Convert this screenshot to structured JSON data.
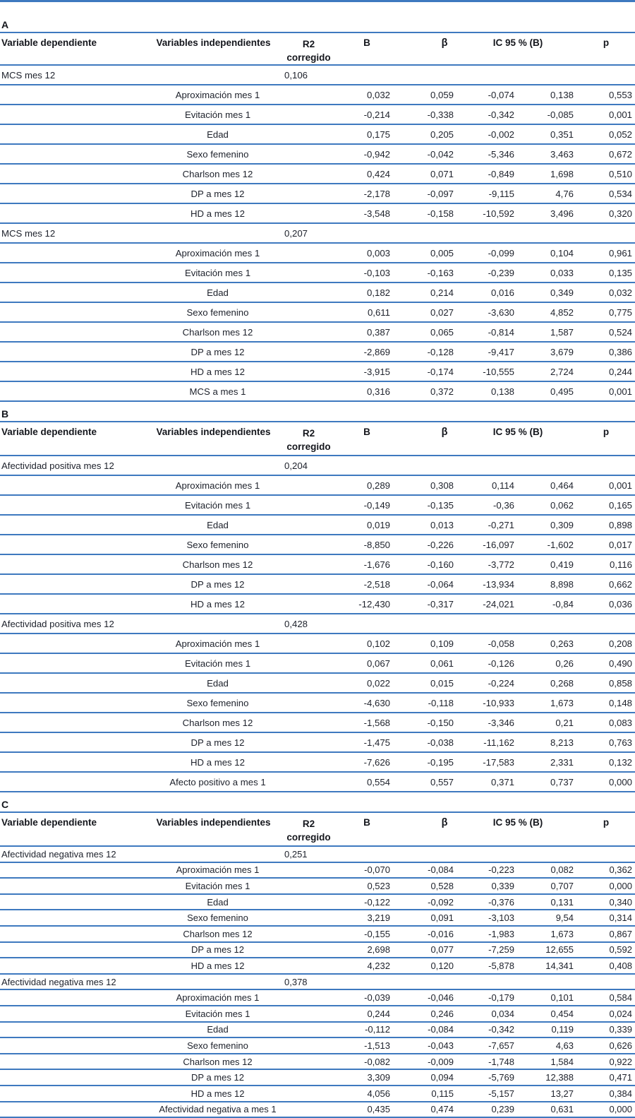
{
  "colors": {
    "rule": "#3e79bf",
    "text": "#1d212b",
    "heading_text": "#14161c",
    "background": "#ffffff"
  },
  "table": {
    "header": {
      "col_dependent": "Variable dependiente",
      "col_independent": "Variables independientes",
      "col_r2_line1": "R2",
      "col_r2_line2": "corregido",
      "col_b": "B",
      "col_beta": "β",
      "col_ic": "IC 95 % (B)",
      "col_p": "p"
    },
    "sections": [
      {
        "label": "A",
        "density": "normal",
        "models": [
          {
            "dependent": "MCS mes 12",
            "r2": "0,106",
            "rows": [
              [
                "Aproximación mes 1",
                "0,032",
                "0,059",
                "-0,074",
                "0,138",
                "0,553"
              ],
              [
                "Evitación mes 1",
                "-0,214",
                "-0,338",
                "-0,342",
                "-0,085",
                "0,001"
              ],
              [
                "Edad",
                "0,175",
                "0,205",
                "-0,002",
                "0,351",
                "0,052"
              ],
              [
                "Sexo femenino",
                "-0,942",
                "-0,042",
                "-5,346",
                "3,463",
                "0,672"
              ],
              [
                "Charlson mes 12",
                "0,424",
                "0,071",
                "-0,849",
                "1,698",
                "0,510"
              ],
              [
                "DP a mes 12",
                "-2,178",
                "-0,097",
                "-9,115",
                "4,76",
                "0,534"
              ],
              [
                "HD a mes 12",
                "-3,548",
                "-0,158",
                "-10,592",
                "3,496",
                "0,320"
              ]
            ]
          },
          {
            "dependent": "MCS mes 12",
            "r2": "0,207",
            "rows": [
              [
                "Aproximación mes 1",
                "0,003",
                "0,005",
                "-0,099",
                "0,104",
                "0,961"
              ],
              [
                "Evitación mes 1",
                "-0,103",
                "-0,163",
                "-0,239",
                "0,033",
                "0,135"
              ],
              [
                "Edad",
                "0,182",
                "0,214",
                "0,016",
                "0,349",
                "0,032"
              ],
              [
                "Sexo femenino",
                "0,611",
                "0,027",
                "-3,630",
                "4,852",
                "0,775"
              ],
              [
                "Charlson mes 12",
                "0,387",
                "0,065",
                "-0,814",
                "1,587",
                "0,524"
              ],
              [
                "DP a mes 12",
                "-2,869",
                "-0,128",
                "-9,417",
                "3,679",
                "0,386"
              ],
              [
                "HD a mes 12",
                "-3,915",
                "-0,174",
                "-10,555",
                "2,724",
                "0,244"
              ],
              [
                "MCS a mes 1",
                "0,316",
                "0,372",
                "0,138",
                "0,495",
                "0,001"
              ]
            ]
          }
        ]
      },
      {
        "label": "B",
        "density": "normal",
        "models": [
          {
            "dependent": "Afectividad positiva mes 12",
            "r2": "0,204",
            "rows": [
              [
                "Aproximación mes 1",
                "0,289",
                "0,308",
                "0,114",
                "0,464",
                "0,001"
              ],
              [
                "Evitación mes 1",
                "-0,149",
                "-0,135",
                "-0,36",
                "0,062",
                "0,165"
              ],
              [
                "Edad",
                "0,019",
                "0,013",
                "-0,271",
                "0,309",
                "0,898"
              ],
              [
                "Sexo femenino",
                "-8,850",
                "-0,226",
                "-16,097",
                "-1,602",
                "0,017"
              ],
              [
                "Charlson mes 12",
                "-1,676",
                "-0,160",
                "-3,772",
                "0,419",
                "0,116"
              ],
              [
                "DP a mes 12",
                "-2,518",
                "-0,064",
                "-13,934",
                "8,898",
                "0,662"
              ],
              [
                "HD a mes 12",
                "-12,430",
                "-0,317",
                "-24,021",
                "-0,84",
                "0,036"
              ]
            ]
          },
          {
            "dependent": "Afectividad  positiva mes 12",
            "r2": "0,428",
            "rows": [
              [
                "Aproximación mes 1",
                "0,102",
                "0,109",
                "-0,058",
                "0,263",
                "0,208"
              ],
              [
                "Evitación mes 1",
                "0,067",
                "0,061",
                "-0,126",
                "0,26",
                "0,490"
              ],
              [
                "Edad",
                "0,022",
                "0,015",
                "-0,224",
                "0,268",
                "0,858"
              ],
              [
                "Sexo femenino",
                "-4,630",
                "-0,118",
                "-10,933",
                "1,673",
                "0,148"
              ],
              [
                "Charlson mes 12",
                "-1,568",
                "-0,150",
                "-3,346",
                "0,21",
                "0,083"
              ],
              [
                "DP a mes 12",
                "-1,475",
                "-0,038",
                "-11,162",
                "8,213",
                "0,763"
              ],
              [
                "HD a mes 12",
                "-7,626",
                "-0,195",
                "-17,583",
                "2,331",
                "0,132"
              ],
              [
                "Afecto positivo a mes 1",
                "0,554",
                "0,557",
                "0,371",
                "0,737",
                "0,000"
              ]
            ]
          }
        ]
      },
      {
        "label": "C",
        "density": "compact",
        "models": [
          {
            "dependent": "Afectividad negativa mes 12",
            "r2": "0,251",
            "rows": [
              [
                "Aproximación mes 1",
                "-0,070",
                "-0,084",
                "-0,223",
                "0,082",
                "0,362"
              ],
              [
                "Evitación mes 1",
                "0,523",
                "0,528",
                "0,339",
                "0,707",
                "0,000"
              ],
              [
                "Edad",
                "-0,122",
                "-0,092",
                "-0,376",
                "0,131",
                "0,340"
              ],
              [
                "Sexo femenino",
                "3,219",
                "0,091",
                "-3,103",
                "9,54",
                "0,314"
              ],
              [
                "Charlson mes 12",
                "-0,155",
                "-0,016",
                "-1,983",
                "1,673",
                "0,867"
              ],
              [
                "DP a mes 12",
                "2,698",
                "0,077",
                "-7,259",
                "12,655",
                "0,592"
              ],
              [
                "HD a mes 12",
                "4,232",
                "0,120",
                "-5,878",
                "14,341",
                "0,408"
              ]
            ]
          },
          {
            "dependent": "Afectividad negativa mes 12",
            "r2": "0,378",
            "rows": [
              [
                "Aproximación mes 1",
                "-0,039",
                "-0,046",
                "-0,179",
                "0,101",
                "0,584"
              ],
              [
                "Evitación mes 1",
                "0,244",
                "0,246",
                "0,034",
                "0,454",
                "0,024"
              ],
              [
                "Edad",
                "-0,112",
                "-0,084",
                "-0,342",
                "0,119",
                "0,339"
              ],
              [
                "Sexo femenino",
                "-1,513",
                "-0,043",
                "-7,657",
                "4,63",
                "0,626"
              ],
              [
                "Charlson mes 12",
                "-0,082",
                "-0,009",
                "-1,748",
                "1,584",
                "0,922"
              ],
              [
                "DP a mes 12",
                "3,309",
                "0,094",
                "-5,769",
                "12,388",
                "0,471"
              ],
              [
                "HD a mes 12",
                "4,056",
                "0,115",
                "-5,157",
                "13,27",
                "0,384"
              ],
              [
                "Afectividad negativa a mes 1",
                "0,435",
                "0,474",
                "0,239",
                "0,631",
                "0,000"
              ]
            ]
          }
        ]
      }
    ]
  }
}
